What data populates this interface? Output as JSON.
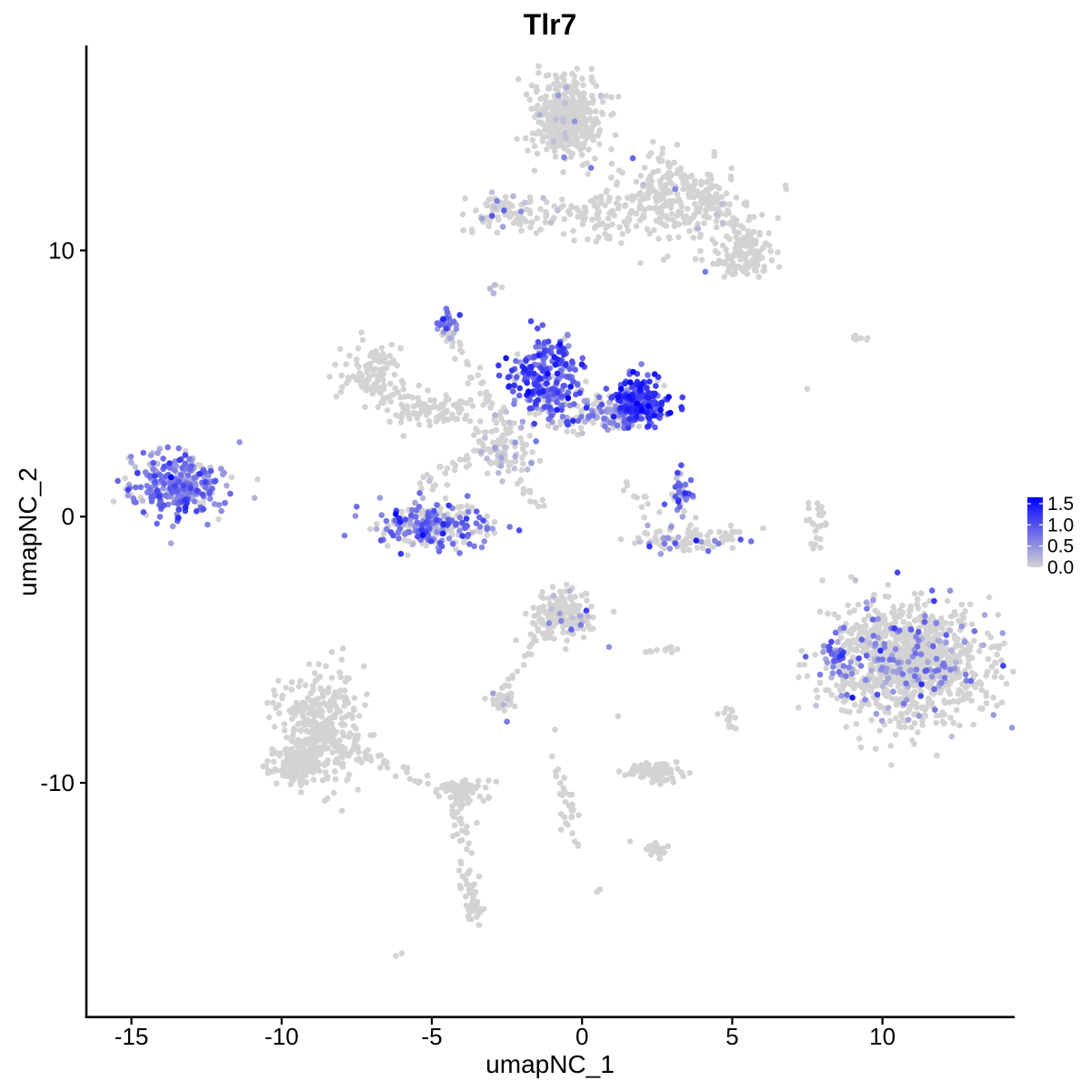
{
  "chart_data": {
    "type": "scatter",
    "title": "Tlr7",
    "xlabel": "umapNC_1",
    "ylabel": "umapNC_2",
    "xlim": [
      -16.5,
      14.4
    ],
    "ylim": [
      -18.8,
      17.7
    ],
    "x_ticks": [
      -15,
      -10,
      -5,
      0,
      5,
      10
    ],
    "x_tick_labels": [
      "-15",
      "-10",
      "-5",
      "0",
      "5",
      "10"
    ],
    "y_ticks": [
      -10,
      0,
      10
    ],
    "y_tick_labels": [
      "-10",
      "0",
      "10"
    ],
    "grid": false,
    "legend_position": "right",
    "color_scale": {
      "low_color": "#d3d3d3",
      "high_color": "#0000ff",
      "min": 0.0,
      "max": 1.65,
      "breaks": [
        0.0,
        0.5,
        1.0,
        1.5
      ],
      "break_labels": [
        "0.0",
        "0.5",
        "1.0",
        "1.5"
      ]
    },
    "clusters": [
      {
        "name": "",
        "center": [
          -0.5,
          15.1
        ],
        "sd": [
          0.55,
          0.7
        ],
        "n": 420,
        "mean_expr": 0.02,
        "expr_frac": 0.02
      },
      {
        "name": "",
        "center": [
          3.0,
          11.8
        ],
        "sd": [
          1.2,
          0.7
        ],
        "n": 240,
        "mean_expr": 0.02,
        "expr_frac": 0.03
      },
      {
        "name": "",
        "center": [
          5.4,
          9.9
        ],
        "sd": [
          0.5,
          0.4
        ],
        "n": 120,
        "mean_expr": 0.0,
        "expr_frac": 0.0
      },
      {
        "name": "",
        "center": [
          -2.2,
          11.4
        ],
        "sd": [
          0.9,
          0.4
        ],
        "n": 90,
        "mean_expr": 0.3,
        "expr_frac": 0.12
      },
      {
        "name": "",
        "center": [
          0.9,
          11.3
        ],
        "sd": [
          0.6,
          0.6
        ],
        "n": 60,
        "mean_expr": 0.0,
        "expr_frac": 0.0
      },
      {
        "name": "",
        "center": [
          -13.4,
          1.2
        ],
        "sd": [
          0.75,
          0.55
        ],
        "n": 300,
        "mean_expr": 0.65,
        "expr_frac": 0.9
      },
      {
        "name": "",
        "center": [
          -7.0,
          5.4
        ],
        "sd": [
          0.5,
          0.6
        ],
        "n": 110,
        "mean_expr": 0.0,
        "expr_frac": 0.0
      },
      {
        "name": "",
        "center": [
          -4.8,
          4.0
        ],
        "sd": [
          0.9,
          0.4
        ],
        "n": 80,
        "mean_expr": 0.0,
        "expr_frac": 0.0
      },
      {
        "name": "",
        "center": [
          -4.5,
          7.3
        ],
        "sd": [
          0.15,
          0.25
        ],
        "n": 25,
        "mean_expr": 0.65,
        "expr_frac": 1.0
      },
      {
        "name": "",
        "center": [
          -5.0,
          -0.3
        ],
        "sd": [
          1.0,
          0.45
        ],
        "n": 260,
        "mean_expr": 0.7,
        "expr_frac": 0.55
      },
      {
        "name": "",
        "center": [
          -1.2,
          5.3
        ],
        "sd": [
          0.6,
          0.7
        ],
        "n": 240,
        "mean_expr": 0.9,
        "expr_frac": 0.9
      },
      {
        "name": "",
        "center": [
          1.9,
          4.3
        ],
        "sd": [
          0.5,
          0.45
        ],
        "n": 220,
        "mean_expr": 1.05,
        "expr_frac": 0.95
      },
      {
        "name": "",
        "center": [
          0.5,
          3.9
        ],
        "sd": [
          0.8,
          0.35
        ],
        "n": 120,
        "mean_expr": 0.6,
        "expr_frac": 0.6
      },
      {
        "name": "",
        "center": [
          -2.5,
          2.7
        ],
        "sd": [
          0.6,
          0.6
        ],
        "n": 80,
        "mean_expr": 0.2,
        "expr_frac": 0.3
      },
      {
        "name": "",
        "center": [
          3.3,
          0.8
        ],
        "sd": [
          0.2,
          0.4
        ],
        "n": 40,
        "mean_expr": 0.7,
        "expr_frac": 0.8
      },
      {
        "name": "",
        "center": [
          3.5,
          -0.8
        ],
        "sd": [
          0.9,
          0.25
        ],
        "n": 90,
        "mean_expr": 0.5,
        "expr_frac": 0.2
      },
      {
        "name": "",
        "center": [
          10.8,
          -5.4
        ],
        "sd": [
          1.3,
          1.1
        ],
        "n": 1100,
        "mean_expr": 0.55,
        "expr_frac": 0.13
      },
      {
        "name": "",
        "center": [
          8.4,
          -5.3
        ],
        "sd": [
          0.25,
          0.35
        ],
        "n": 40,
        "mean_expr": 0.7,
        "expr_frac": 0.9
      },
      {
        "name": "",
        "center": [
          -0.6,
          -3.7
        ],
        "sd": [
          0.5,
          0.5
        ],
        "n": 160,
        "mean_expr": 0.3,
        "expr_frac": 0.06
      },
      {
        "name": "",
        "center": [
          -8.7,
          -7.8
        ],
        "sd": [
          0.7,
          1.0
        ],
        "n": 340,
        "mean_expr": 0.0,
        "expr_frac": 0.0
      },
      {
        "name": "",
        "center": [
          -9.6,
          -9.2
        ],
        "sd": [
          0.5,
          0.4
        ],
        "n": 120,
        "mean_expr": 0.0,
        "expr_frac": 0.0
      },
      {
        "name": "",
        "center": [
          -4.0,
          -10.3
        ],
        "sd": [
          0.35,
          0.2
        ],
        "n": 60,
        "mean_expr": 0.0,
        "expr_frac": 0.0
      },
      {
        "name": "",
        "center": [
          -2.6,
          -6.9
        ],
        "sd": [
          0.25,
          0.15
        ],
        "n": 30,
        "mean_expr": 0.4,
        "expr_frac": 0.1
      },
      {
        "name": "",
        "center": [
          2.4,
          -9.6
        ],
        "sd": [
          0.45,
          0.2
        ],
        "n": 70,
        "mean_expr": 0.0,
        "expr_frac": 0.0
      },
      {
        "name": "",
        "center": [
          2.5,
          -12.5
        ],
        "sd": [
          0.2,
          0.15
        ],
        "n": 25,
        "mean_expr": 0.0,
        "expr_frac": 0.0
      },
      {
        "name": "",
        "center": [
          -3.6,
          -14.8
        ],
        "sd": [
          0.15,
          0.3
        ],
        "n": 30,
        "mean_expr": 0.0,
        "expr_frac": 0.0
      },
      {
        "name": "",
        "center": [
          7.9,
          -0.2
        ],
        "sd": [
          0.2,
          0.4
        ],
        "n": 25,
        "mean_expr": 0.0,
        "expr_frac": 0.0
      },
      {
        "name": "",
        "center": [
          4.9,
          -7.5
        ],
        "sd": [
          0.15,
          0.2
        ],
        "n": 12,
        "mean_expr": 0.0,
        "expr_frac": 0.0
      },
      {
        "name": "",
        "center": [
          2.7,
          -5.0
        ],
        "sd": [
          0.3,
          0.05
        ],
        "n": 10,
        "mean_expr": 0.0,
        "expr_frac": 0.0
      },
      {
        "name": "",
        "center": [
          -2.9,
          8.6
        ],
        "sd": [
          0.15,
          0.15
        ],
        "n": 6,
        "mean_expr": 0.2,
        "expr_frac": 0.3
      },
      {
        "name": "",
        "center": [
          9.3,
          6.7
        ],
        "sd": [
          0.2,
          0.05
        ],
        "n": 5,
        "mean_expr": 0.0,
        "expr_frac": 0.0
      }
    ],
    "trails": [
      {
        "from": [
          -4.4,
          6.8
        ],
        "to": [
          -2.6,
          3.4
        ],
        "n": 40,
        "mean_expr": 0.1,
        "expr_frac": 0.1
      },
      {
        "from": [
          -2.2,
          3.0
        ],
        "to": [
          -5.5,
          1.2
        ],
        "n": 30,
        "mean_expr": 0.05,
        "expr_frac": 0.05
      },
      {
        "from": [
          -3.2,
          2.4
        ],
        "to": [
          -1.3,
          0.4
        ],
        "n": 20,
        "mean_expr": 0.0,
        "expr_frac": 0.0
      },
      {
        "from": [
          -0.7,
          -3.2
        ],
        "to": [
          -2.7,
          -6.6
        ],
        "n": 30,
        "mean_expr": 0.0,
        "expr_frac": 0.0
      },
      {
        "from": [
          -9.0,
          -8.2
        ],
        "to": [
          -4.2,
          -10.4
        ],
        "n": 60,
        "mean_expr": 0.0,
        "expr_frac": 0.0
      },
      {
        "from": [
          -4.2,
          -10.6
        ],
        "to": [
          -3.6,
          -14.7
        ],
        "n": 45,
        "mean_expr": 0.0,
        "expr_frac": 0.0
      },
      {
        "from": [
          -0.8,
          -9.5
        ],
        "to": [
          -0.2,
          -12.4
        ],
        "n": 30,
        "mean_expr": 0.0,
        "expr_frac": 0.0
      },
      {
        "from": [
          0.6,
          11.4
        ],
        "to": [
          -1.2,
          11.3
        ],
        "n": 20,
        "mean_expr": 0.0,
        "expr_frac": 0.0
      },
      {
        "from": [
          2.2,
          13.9
        ],
        "to": [
          5.6,
          10.6
        ],
        "n": 50,
        "mean_expr": 0.0,
        "expr_frac": 0.0
      },
      {
        "from": [
          -6.2,
          4.0
        ],
        "to": [
          -4.0,
          4.2
        ],
        "n": 25,
        "mean_expr": 0.0,
        "expr_frac": 0.0
      },
      {
        "from": [
          1.2,
          1.3
        ],
        "to": [
          2.5,
          0.3
        ],
        "n": 10,
        "mean_expr": 0.0,
        "expr_frac": 0.0
      },
      {
        "from": [
          -1.5,
          6.0
        ],
        "to": [
          -1.0,
          3.5
        ],
        "n": 20,
        "mean_expr": 0.6,
        "expr_frac": 0.5
      }
    ],
    "points": [
      {
        "x": -15.0,
        "y": 0.8,
        "expr": 0.0
      },
      {
        "x": -12.1,
        "y": -0.1,
        "expr": 0.0
      },
      {
        "x": -11.4,
        "y": 2.8,
        "expr": 0.5
      },
      {
        "x": -10.8,
        "y": 1.4,
        "expr": 0.0
      },
      {
        "x": -15.1,
        "y": 2.2,
        "expr": 0.0
      },
      {
        "x": -5.3,
        "y": -0.7,
        "expr": 1.55
      },
      {
        "x": -6.2,
        "y": 0.1,
        "expr": 1.65
      },
      {
        "x": -4.4,
        "y": 6.7,
        "expr": 0.3
      },
      {
        "x": -5.3,
        "y": 0.7,
        "expr": 0.2
      },
      {
        "x": 1.3,
        "y": 4.8,
        "expr": 1.65
      },
      {
        "x": 1.2,
        "y": 4.5,
        "expr": 1.55
      },
      {
        "x": 2.4,
        "y": 3.8,
        "expr": 1.5
      },
      {
        "x": -1.3,
        "y": 4.7,
        "expr": 1.4
      },
      {
        "x": -0.3,
        "y": 3.6,
        "expr": 1.3
      },
      {
        "x": -3.0,
        "y": 3.2,
        "expr": 0.0
      },
      {
        "x": -2.7,
        "y": 2.9,
        "expr": 0.0
      },
      {
        "x": -1.4,
        "y": 2.1,
        "expr": 0.0
      },
      {
        "x": 9.0,
        "y": -6.8,
        "expr": 1.5
      },
      {
        "x": 10.4,
        "y": -4.2,
        "expr": 1.2
      },
      {
        "x": 11.3,
        "y": -6.3,
        "expr": 1.3
      },
      {
        "x": 10.5,
        "y": -2.1,
        "expr": 1.1
      },
      {
        "x": 8.3,
        "y": -4.7,
        "expr": 1.1
      },
      {
        "x": 3.8,
        "y": -0.9,
        "expr": 1.4
      },
      {
        "x": 3.1,
        "y": -1.0,
        "expr": 1.0
      },
      {
        "x": -1.1,
        "y": -4.0,
        "expr": 0.6
      },
      {
        "x": 0.9,
        "y": -4.9,
        "expr": 0.5
      },
      {
        "x": -2.5,
        "y": -7.7,
        "expr": 0.7
      },
      {
        "x": -0.6,
        "y": 13.5,
        "expr": 0.6
      },
      {
        "x": 0.3,
        "y": 13.1,
        "expr": 0.7
      },
      {
        "x": 3.1,
        "y": 12.3,
        "expr": 0.6
      },
      {
        "x": 4.1,
        "y": 9.2,
        "expr": 0.7
      },
      {
        "x": -2.6,
        "y": 11.5,
        "expr": 0.9
      },
      {
        "x": -3.0,
        "y": 11.3,
        "expr": 1.0
      },
      {
        "x": 9.1,
        "y": 6.8,
        "expr": 0.0
      },
      {
        "x": 9.5,
        "y": 6.7,
        "expr": 0.0
      },
      {
        "x": 7.5,
        "y": 4.8,
        "expr": 0.0
      },
      {
        "x": 7.7,
        "y": -1.2,
        "expr": 0.0
      },
      {
        "x": 8.0,
        "y": -2.4,
        "expr": 0.0
      },
      {
        "x": 4.8,
        "y": -7.2,
        "expr": 0.0
      },
      {
        "x": 5.0,
        "y": -7.9,
        "expr": 0.0
      },
      {
        "x": 1.2,
        "y": -7.5,
        "expr": 0.0
      },
      {
        "x": 1.6,
        "y": -12.2,
        "expr": 0.0
      },
      {
        "x": 2.7,
        "y": -12.6,
        "expr": 0.0
      },
      {
        "x": 0.6,
        "y": -14.0,
        "expr": 0.0
      },
      {
        "x": 0.5,
        "y": -14.1,
        "expr": 0.0
      },
      {
        "x": -6.0,
        "y": -16.4,
        "expr": 0.0
      },
      {
        "x": -6.2,
        "y": -16.5,
        "expr": 0.0
      },
      {
        "x": -3.5,
        "y": -11.5,
        "expr": 0.0
      },
      {
        "x": -4.3,
        "y": -12.0,
        "expr": 0.0
      },
      {
        "x": -0.9,
        "y": -8.0,
        "expr": 0.0
      },
      {
        "x": -1.0,
        "y": -9.0,
        "expr": 0.0
      }
    ]
  }
}
